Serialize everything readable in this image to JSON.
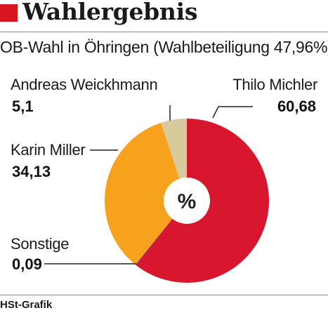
{
  "title": "Wahlergebnis",
  "subtitle": "OB-Wahl in Öhringen (Wahlbeteiligung 47,96%)",
  "center_label": "%",
  "source": "HSt-Grafik",
  "colors": {
    "title_square": "#d8161f",
    "michler": "#d8162e",
    "miller": "#f7a21c",
    "weickhmann": "#d7ca9d",
    "sonstige": "#2563a9"
  },
  "chart_data": {
    "type": "pie",
    "title": "OB-Wahl in Öhringen (Wahlbeteiligung 47,96%)",
    "unit": "%",
    "slices": [
      {
        "label": "Thilo Michler",
        "value": 60.68,
        "display": "60,68",
        "color": "#d8162e"
      },
      {
        "label": "Sonstige",
        "value": 0.09,
        "display": "0,09",
        "color": "#2563a9"
      },
      {
        "label": "Karin Miller",
        "value": 34.13,
        "display": "34,13",
        "color": "#f7a21c"
      },
      {
        "label": "Andreas Weickhmann",
        "value": 5.1,
        "display": "5,1",
        "color": "#d7ca9d"
      }
    ]
  }
}
